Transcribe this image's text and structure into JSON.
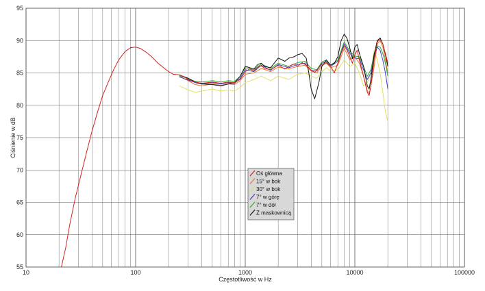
{
  "chart_data": {
    "type": "line",
    "title": "",
    "xlabel": "Częstotliwość w Hz",
    "ylabel": "Ciśnienie w dB",
    "xscale": "log",
    "xlim": [
      10,
      100000
    ],
    "ylim": [
      55,
      95
    ],
    "grid": true,
    "legend_position": "center",
    "x_ticks": [
      "10",
      "100",
      "1000",
      "10000",
      "100000"
    ],
    "y_ticks": [
      "55",
      "60",
      "65",
      "70",
      "75",
      "80",
      "85",
      "90",
      "95"
    ],
    "series": [
      {
        "name": "Oś główna",
        "color": "#d62020",
        "points": [
          [
            21,
            55
          ],
          [
            23,
            58
          ],
          [
            25,
            61.5
          ],
          [
            28,
            65.5
          ],
          [
            32,
            69.5
          ],
          [
            36,
            73
          ],
          [
            40,
            76
          ],
          [
            45,
            79
          ],
          [
            50,
            81.5
          ],
          [
            56,
            83.5
          ],
          [
            63,
            85.5
          ],
          [
            70,
            87
          ],
          [
            80,
            88.3
          ],
          [
            90,
            88.9
          ],
          [
            100,
            89
          ],
          [
            110,
            88.8
          ],
          [
            125,
            88.2
          ],
          [
            140,
            87.5
          ],
          [
            160,
            86.5
          ],
          [
            180,
            85.8
          ],
          [
            200,
            85.2
          ],
          [
            220,
            84.8
          ],
          [
            250,
            84.7
          ],
          [
            280,
            84.4
          ],
          [
            300,
            84
          ],
          [
            350,
            83.6
          ],
          [
            400,
            83.4
          ],
          [
            450,
            83.5
          ],
          [
            500,
            83.6
          ],
          [
            600,
            83.4
          ],
          [
            700,
            83.6
          ],
          [
            800,
            83.5
          ],
          [
            900,
            84
          ],
          [
            1000,
            85.2
          ],
          [
            1100,
            85.6
          ],
          [
            1200,
            85.3
          ],
          [
            1300,
            85.9
          ],
          [
            1400,
            86.1
          ],
          [
            1500,
            85.7
          ],
          [
            1700,
            85.5
          ],
          [
            2000,
            86.2
          ],
          [
            2300,
            85.6
          ],
          [
            2500,
            86
          ],
          [
            2800,
            86.4
          ],
          [
            3000,
            86
          ],
          [
            3300,
            86.6
          ],
          [
            3600,
            86.2
          ],
          [
            4000,
            85.4
          ],
          [
            4300,
            85.1
          ],
          [
            4700,
            85.8
          ],
          [
            5000,
            86.3
          ],
          [
            5500,
            86.6
          ],
          [
            6000,
            86
          ],
          [
            6500,
            85
          ],
          [
            7000,
            86.5
          ],
          [
            7500,
            88
          ],
          [
            8000,
            89.2
          ],
          [
            8500,
            88.5
          ],
          [
            9000,
            87.5
          ],
          [
            9500,
            86.5
          ],
          [
            10000,
            87.8
          ],
          [
            10500,
            88.5
          ],
          [
            11000,
            87
          ],
          [
            12000,
            84.5
          ],
          [
            13000,
            82
          ],
          [
            13500,
            81.5
          ],
          [
            14000,
            83
          ],
          [
            15000,
            87
          ],
          [
            16000,
            89.8
          ],
          [
            17000,
            90.2
          ],
          [
            18000,
            89.5
          ],
          [
            19000,
            88
          ],
          [
            20000,
            86.5
          ]
        ]
      },
      {
        "name": "15° w bok",
        "color": "#e07a2a",
        "points": [
          [
            250,
            84.5
          ],
          [
            300,
            83.8
          ],
          [
            350,
            83.2
          ],
          [
            400,
            83
          ],
          [
            500,
            83.3
          ],
          [
            600,
            83.1
          ],
          [
            700,
            83.3
          ],
          [
            800,
            83.2
          ],
          [
            900,
            83.8
          ],
          [
            1000,
            84.8
          ],
          [
            1200,
            85
          ],
          [
            1400,
            85.7
          ],
          [
            1700,
            85.2
          ],
          [
            2000,
            85.9
          ],
          [
            2500,
            85.6
          ],
          [
            3000,
            86
          ],
          [
            3500,
            86.2
          ],
          [
            4000,
            85.3
          ],
          [
            4500,
            85
          ],
          [
            5000,
            86.1
          ],
          [
            5500,
            86.5
          ],
          [
            6000,
            85.8
          ],
          [
            7000,
            86.2
          ],
          [
            8000,
            88.8
          ],
          [
            9000,
            87
          ],
          [
            10000,
            87.5
          ],
          [
            11000,
            86.5
          ],
          [
            12000,
            84.5
          ],
          [
            13000,
            82.3
          ],
          [
            13500,
            81.8
          ],
          [
            14000,
            83
          ],
          [
            15000,
            86
          ],
          [
            16000,
            89.5
          ],
          [
            17000,
            90
          ],
          [
            18000,
            89
          ],
          [
            19000,
            87
          ],
          [
            20000,
            85
          ]
        ]
      },
      {
        "name": "30° w bok",
        "color": "#e0e060",
        "points": [
          [
            250,
            83
          ],
          [
            300,
            82.4
          ],
          [
            350,
            82
          ],
          [
            400,
            82.2
          ],
          [
            500,
            82.5
          ],
          [
            600,
            82.2
          ],
          [
            700,
            82.4
          ],
          [
            800,
            82.2
          ],
          [
            900,
            82.8
          ],
          [
            1000,
            83.5
          ],
          [
            1200,
            84
          ],
          [
            1400,
            84.5
          ],
          [
            1700,
            83.8
          ],
          [
            2000,
            84.5
          ],
          [
            2500,
            84
          ],
          [
            3000,
            84.8
          ],
          [
            3500,
            85
          ],
          [
            4000,
            84.5
          ],
          [
            4500,
            84.2
          ],
          [
            5000,
            85.2
          ],
          [
            5500,
            85.8
          ],
          [
            6000,
            85.3
          ],
          [
            7000,
            85.5
          ],
          [
            8000,
            87
          ],
          [
            9000,
            86
          ],
          [
            10000,
            86.5
          ],
          [
            11000,
            85
          ],
          [
            12000,
            83
          ],
          [
            13000,
            83.5
          ],
          [
            14000,
            85
          ],
          [
            15000,
            88.5
          ],
          [
            16000,
            87
          ],
          [
            17000,
            85
          ],
          [
            18000,
            82
          ],
          [
            19000,
            79
          ],
          [
            20000,
            77.5
          ]
        ]
      },
      {
        "name": "7° w górę",
        "color": "#3d3dcc",
        "points": [
          [
            250,
            84.4
          ],
          [
            300,
            83.9
          ],
          [
            350,
            83.5
          ],
          [
            400,
            83.3
          ],
          [
            500,
            83.5
          ],
          [
            600,
            83.3
          ],
          [
            700,
            83.5
          ],
          [
            800,
            83.4
          ],
          [
            900,
            84.2
          ],
          [
            1000,
            85.5
          ],
          [
            1200,
            85.2
          ],
          [
            1400,
            86.2
          ],
          [
            1700,
            85.4
          ],
          [
            2000,
            86.3
          ],
          [
            2500,
            85.8
          ],
          [
            3000,
            86.3
          ],
          [
            3500,
            86.5
          ],
          [
            4000,
            85.4
          ],
          [
            4500,
            85.3
          ],
          [
            5000,
            86.5
          ],
          [
            5500,
            86.8
          ],
          [
            6000,
            86
          ],
          [
            7000,
            86.8
          ],
          [
            8000,
            89.5
          ],
          [
            9000,
            88
          ],
          [
            10000,
            87.3
          ],
          [
            11000,
            87.2
          ],
          [
            12000,
            85.5
          ],
          [
            13000,
            84
          ],
          [
            14000,
            85
          ],
          [
            15000,
            87.5
          ],
          [
            16000,
            89
          ],
          [
            17000,
            88.5
          ],
          [
            18000,
            87
          ],
          [
            19000,
            85
          ],
          [
            20000,
            82.5
          ]
        ]
      },
      {
        "name": "7° w dół",
        "color": "#2ea82e",
        "points": [
          [
            250,
            84.6
          ],
          [
            300,
            84.1
          ],
          [
            350,
            83.7
          ],
          [
            400,
            83.6
          ],
          [
            500,
            83.8
          ],
          [
            600,
            83.6
          ],
          [
            700,
            83.8
          ],
          [
            800,
            83.7
          ],
          [
            900,
            84.5
          ],
          [
            1000,
            85.8
          ],
          [
            1200,
            85.5
          ],
          [
            1400,
            86.4
          ],
          [
            1700,
            85.7
          ],
          [
            2000,
            86.5
          ],
          [
            2500,
            86
          ],
          [
            3000,
            86.6
          ],
          [
            3500,
            86.8
          ],
          [
            4000,
            85.7
          ],
          [
            4500,
            85.5
          ],
          [
            5000,
            86.7
          ],
          [
            5500,
            87
          ],
          [
            6000,
            86.2
          ],
          [
            7000,
            87
          ],
          [
            8000,
            89.8
          ],
          [
            9000,
            88.3
          ],
          [
            10000,
            87.6
          ],
          [
            11000,
            87.5
          ],
          [
            12000,
            86
          ],
          [
            13000,
            84.5
          ],
          [
            14000,
            85.5
          ],
          [
            15000,
            88
          ],
          [
            16000,
            89.2
          ],
          [
            17000,
            89
          ],
          [
            18000,
            88
          ],
          [
            19000,
            86.5
          ],
          [
            20000,
            84.5
          ]
        ]
      },
      {
        "name": "Z maskownicą",
        "color": "#111111",
        "points": [
          [
            250,
            84.7
          ],
          [
            300,
            84.2
          ],
          [
            350,
            83.6
          ],
          [
            400,
            83.3
          ],
          [
            500,
            83.2
          ],
          [
            600,
            83
          ],
          [
            700,
            83.3
          ],
          [
            800,
            83.5
          ],
          [
            900,
            84.5
          ],
          [
            1000,
            86
          ],
          [
            1100,
            85.8
          ],
          [
            1200,
            85.6
          ],
          [
            1300,
            86.3
          ],
          [
            1400,
            86.5
          ],
          [
            1500,
            86
          ],
          [
            1700,
            85.8
          ],
          [
            2000,
            87.3
          ],
          [
            2300,
            86.8
          ],
          [
            2500,
            87.3
          ],
          [
            2800,
            87.5
          ],
          [
            3000,
            87.8
          ],
          [
            3300,
            88
          ],
          [
            3600,
            87.3
          ],
          [
            3800,
            85
          ],
          [
            4000,
            82.5
          ],
          [
            4300,
            81
          ],
          [
            4700,
            83.5
          ],
          [
            5000,
            86
          ],
          [
            5500,
            87
          ],
          [
            6000,
            86.2
          ],
          [
            6500,
            86.5
          ],
          [
            7000,
            87.5
          ],
          [
            7500,
            90
          ],
          [
            8000,
            91
          ],
          [
            8500,
            90.3
          ],
          [
            9000,
            88.8
          ],
          [
            9500,
            87.2
          ],
          [
            10000,
            89
          ],
          [
            10500,
            89.4
          ],
          [
            11000,
            88
          ],
          [
            12000,
            86
          ],
          [
            13000,
            83
          ],
          [
            13500,
            82.5
          ],
          [
            14000,
            84
          ],
          [
            15000,
            87.8
          ],
          [
            16000,
            90
          ],
          [
            17000,
            90.4
          ],
          [
            18000,
            89.5
          ],
          [
            19000,
            87.8
          ],
          [
            20000,
            86
          ]
        ]
      }
    ]
  }
}
